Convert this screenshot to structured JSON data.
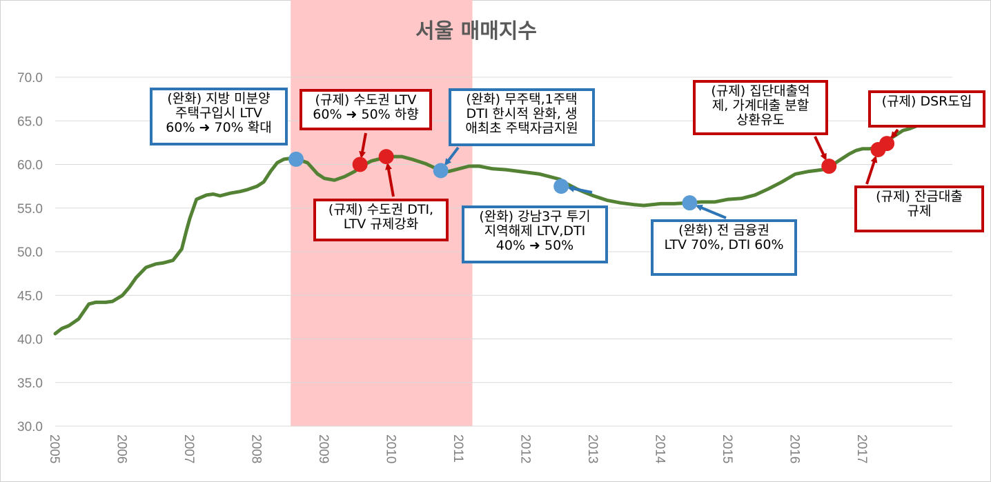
{
  "chart_data": {
    "type": "line",
    "title": "서울 매매지수",
    "xlabel": "",
    "ylabel": "",
    "ylim": [
      30.0,
      70.0
    ],
    "yticks": [
      "30.0",
      "35.0",
      "40.0",
      "45.0",
      "50.0",
      "55.0",
      "60.0",
      "65.0",
      "70.0"
    ],
    "xticks": [
      "2005",
      "2006",
      "2007",
      "2008",
      "2009",
      "2010",
      "2011",
      "2012",
      "2013",
      "2014",
      "2015",
      "2016",
      "2017"
    ],
    "grid": "horizontal",
    "legend": "none",
    "line_color": "#548235",
    "shaded_period": {
      "from": 2008.5,
      "to": 2011.2,
      "color": "#ffc7c7"
    },
    "series": [
      {
        "x": [
          2005.0,
          2005.1,
          2005.2,
          2005.35,
          2005.5,
          2005.6,
          2005.75,
          2005.85,
          2006.0,
          2006.1,
          2006.2,
          2006.35,
          2006.5,
          2006.6,
          2006.75,
          2006.8,
          2006.88,
          2006.95,
          2007.0,
          2007.1,
          2007.25,
          2007.35,
          2007.45,
          2007.6,
          2007.75,
          2007.85,
          2008.0,
          2008.1,
          2008.2,
          2008.3,
          2008.4,
          2008.5,
          2008.6,
          2008.75,
          2008.9,
          2009.0,
          2009.15,
          2009.3,
          2009.45,
          2009.55,
          2009.7,
          2009.9,
          2010.0,
          2010.15,
          2010.3,
          2010.5,
          2010.7,
          2010.85,
          2011.0,
          2011.15,
          2011.3,
          2011.5,
          2011.7,
          2011.9,
          2012.0,
          2012.2,
          2012.4,
          2012.5,
          2012.6,
          2012.75,
          2012.9,
          2013.0,
          2013.2,
          2013.4,
          2013.6,
          2013.75,
          2014.0,
          2014.2,
          2014.4,
          2014.6,
          2014.8,
          2015.0,
          2015.2,
          2015.4,
          2015.6,
          2015.8,
          2016.0,
          2016.2,
          2016.4,
          2016.5,
          2016.6,
          2016.7,
          2016.8,
          2016.9,
          2017.0,
          2017.1,
          2017.2,
          2017.3,
          2017.4,
          2017.5,
          2017.6,
          2017.7,
          2017.8,
          2017.92
        ],
        "values": [
          40.6,
          41.2,
          41.5,
          42.3,
          44.0,
          44.2,
          44.2,
          44.3,
          45.0,
          45.9,
          47.0,
          48.2,
          48.6,
          48.7,
          49.0,
          49.5,
          50.3,
          52.4,
          53.8,
          56.0,
          56.5,
          56.6,
          56.4,
          56.7,
          56.9,
          57.1,
          57.5,
          58.0,
          59.2,
          60.2,
          60.6,
          60.7,
          60.6,
          60.2,
          58.9,
          58.4,
          58.2,
          58.6,
          59.2,
          59.8,
          60.4,
          60.8,
          60.9,
          60.9,
          60.6,
          60.1,
          59.4,
          59.2,
          59.5,
          59.8,
          59.8,
          59.5,
          59.4,
          59.2,
          59.1,
          58.9,
          58.5,
          58.3,
          57.8,
          57.2,
          56.7,
          56.4,
          55.9,
          55.6,
          55.4,
          55.3,
          55.5,
          55.5,
          55.6,
          55.7,
          55.7,
          56.0,
          56.1,
          56.5,
          57.2,
          58.0,
          58.9,
          59.2,
          59.4,
          59.7,
          60.2,
          60.7,
          61.2,
          61.6,
          61.8,
          61.8,
          61.9,
          62.3,
          62.9,
          63.4,
          63.9,
          64.1,
          64.4,
          65.0
        ]
      }
    ],
    "events": [
      {
        "x": 2008.58,
        "value": 60.6,
        "type": "완화",
        "text": "(완화) 지방 미분양\n주택구입시 LTV\n60% ➜ 70% 확대"
      },
      {
        "x": 2009.53,
        "value": 60.0,
        "type": "규제",
        "text": "(규제) 수도권 LTV\n60% ➜ 50% 하향"
      },
      {
        "x": 2009.92,
        "value": 60.9,
        "type": "규제",
        "text": "(규제) 수도권 DTI,\nLTV 규제강화"
      },
      {
        "x": 2010.73,
        "value": 59.3,
        "type": "완화",
        "text": "(완화) 무주택,1주택\nDTI 한시적 완화, 생\n애최초 주택자금지원"
      },
      {
        "x": 2012.52,
        "value": 57.5,
        "type": "완화",
        "text": "(완화) 강남3구 투기\n지역해제 LTV,DTI\n40% ➜ 50%"
      },
      {
        "x": 2014.43,
        "value": 55.6,
        "type": "완화",
        "text": "(완화) 전 금융권\nLTV 70%, DTI 60%"
      },
      {
        "x": 2016.5,
        "value": 59.8,
        "type": "규제",
        "text": "(규제) 집단대출억\n제, 가계대출 분할\n상환유도"
      },
      {
        "x": 2017.23,
        "value": 61.7,
        "type": "규제",
        "text": "(규제) 잔금대출\n규제"
      },
      {
        "x": 2017.36,
        "value": 62.4,
        "type": "규제",
        "text": "(규제) DSR도입"
      }
    ]
  },
  "colors": {
    "완화": "#2e75b6",
    "규제": "#c00000",
    "dot_완화": "#5b9bd5",
    "dot_규제": "#e02020"
  }
}
